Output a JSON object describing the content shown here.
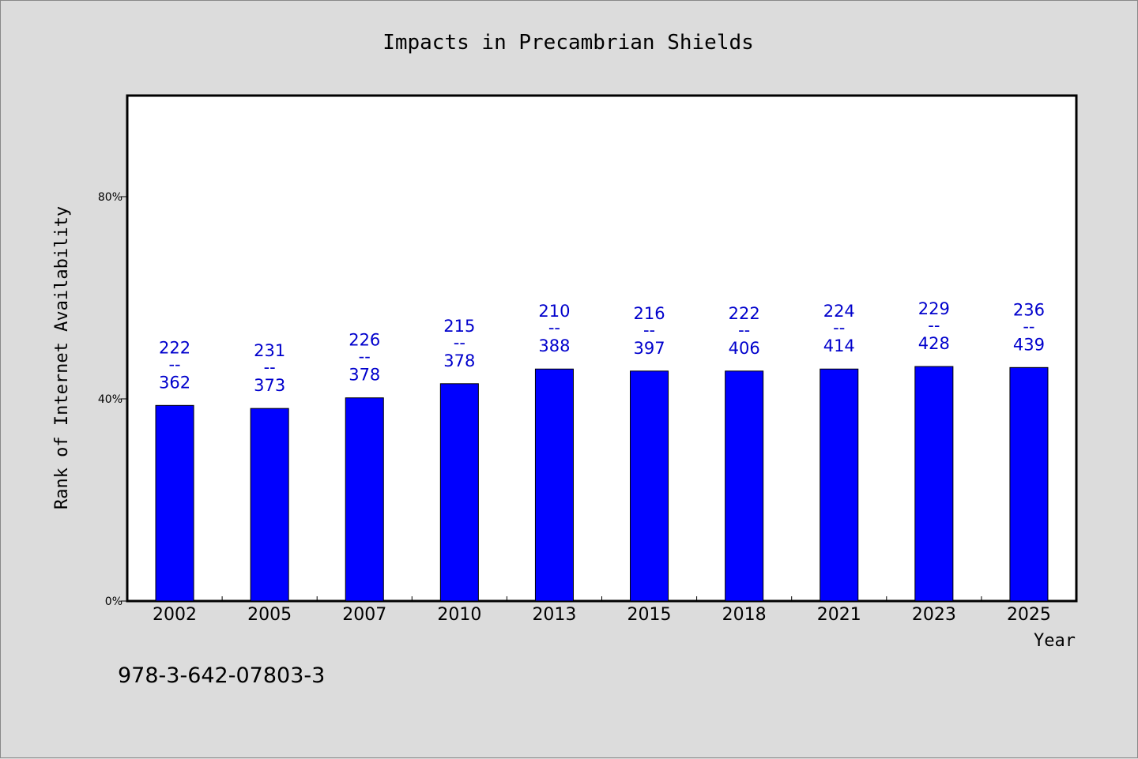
{
  "footer_code": "978-3-642-07803-3",
  "colors": {
    "background": "#dcdcdc",
    "plot_background": "#ffffff",
    "bar_fill": "#0000ff",
    "label_color": "#0000cc",
    "axis": "#000000"
  },
  "chart_data": {
    "type": "bar",
    "title": "Impacts in Precambrian Shields",
    "xlabel": "Year",
    "ylabel": "Rank of Internet Availability",
    "categories": [
      "2002",
      "2005",
      "2007",
      "2010",
      "2013",
      "2015",
      "2018",
      "2021",
      "2023",
      "2025"
    ],
    "values": [
      38.7,
      38.1,
      40.2,
      43.0,
      45.9,
      45.5,
      45.5,
      45.9,
      46.4,
      46.2
    ],
    "labels_top": [
      "222",
      "231",
      "226",
      "215",
      "210",
      "216",
      "222",
      "224",
      "229",
      "236"
    ],
    "labels_sep": "--",
    "labels_bottom": [
      "362",
      "373",
      "378",
      "378",
      "388",
      "397",
      "406",
      "414",
      "428",
      "439"
    ],
    "ylim": [
      0,
      100
    ],
    "yticks": [
      0,
      40,
      80
    ],
    "ytick_labels": [
      "0%",
      "40%",
      "80%"
    ],
    "grid": false,
    "legend": "none"
  }
}
